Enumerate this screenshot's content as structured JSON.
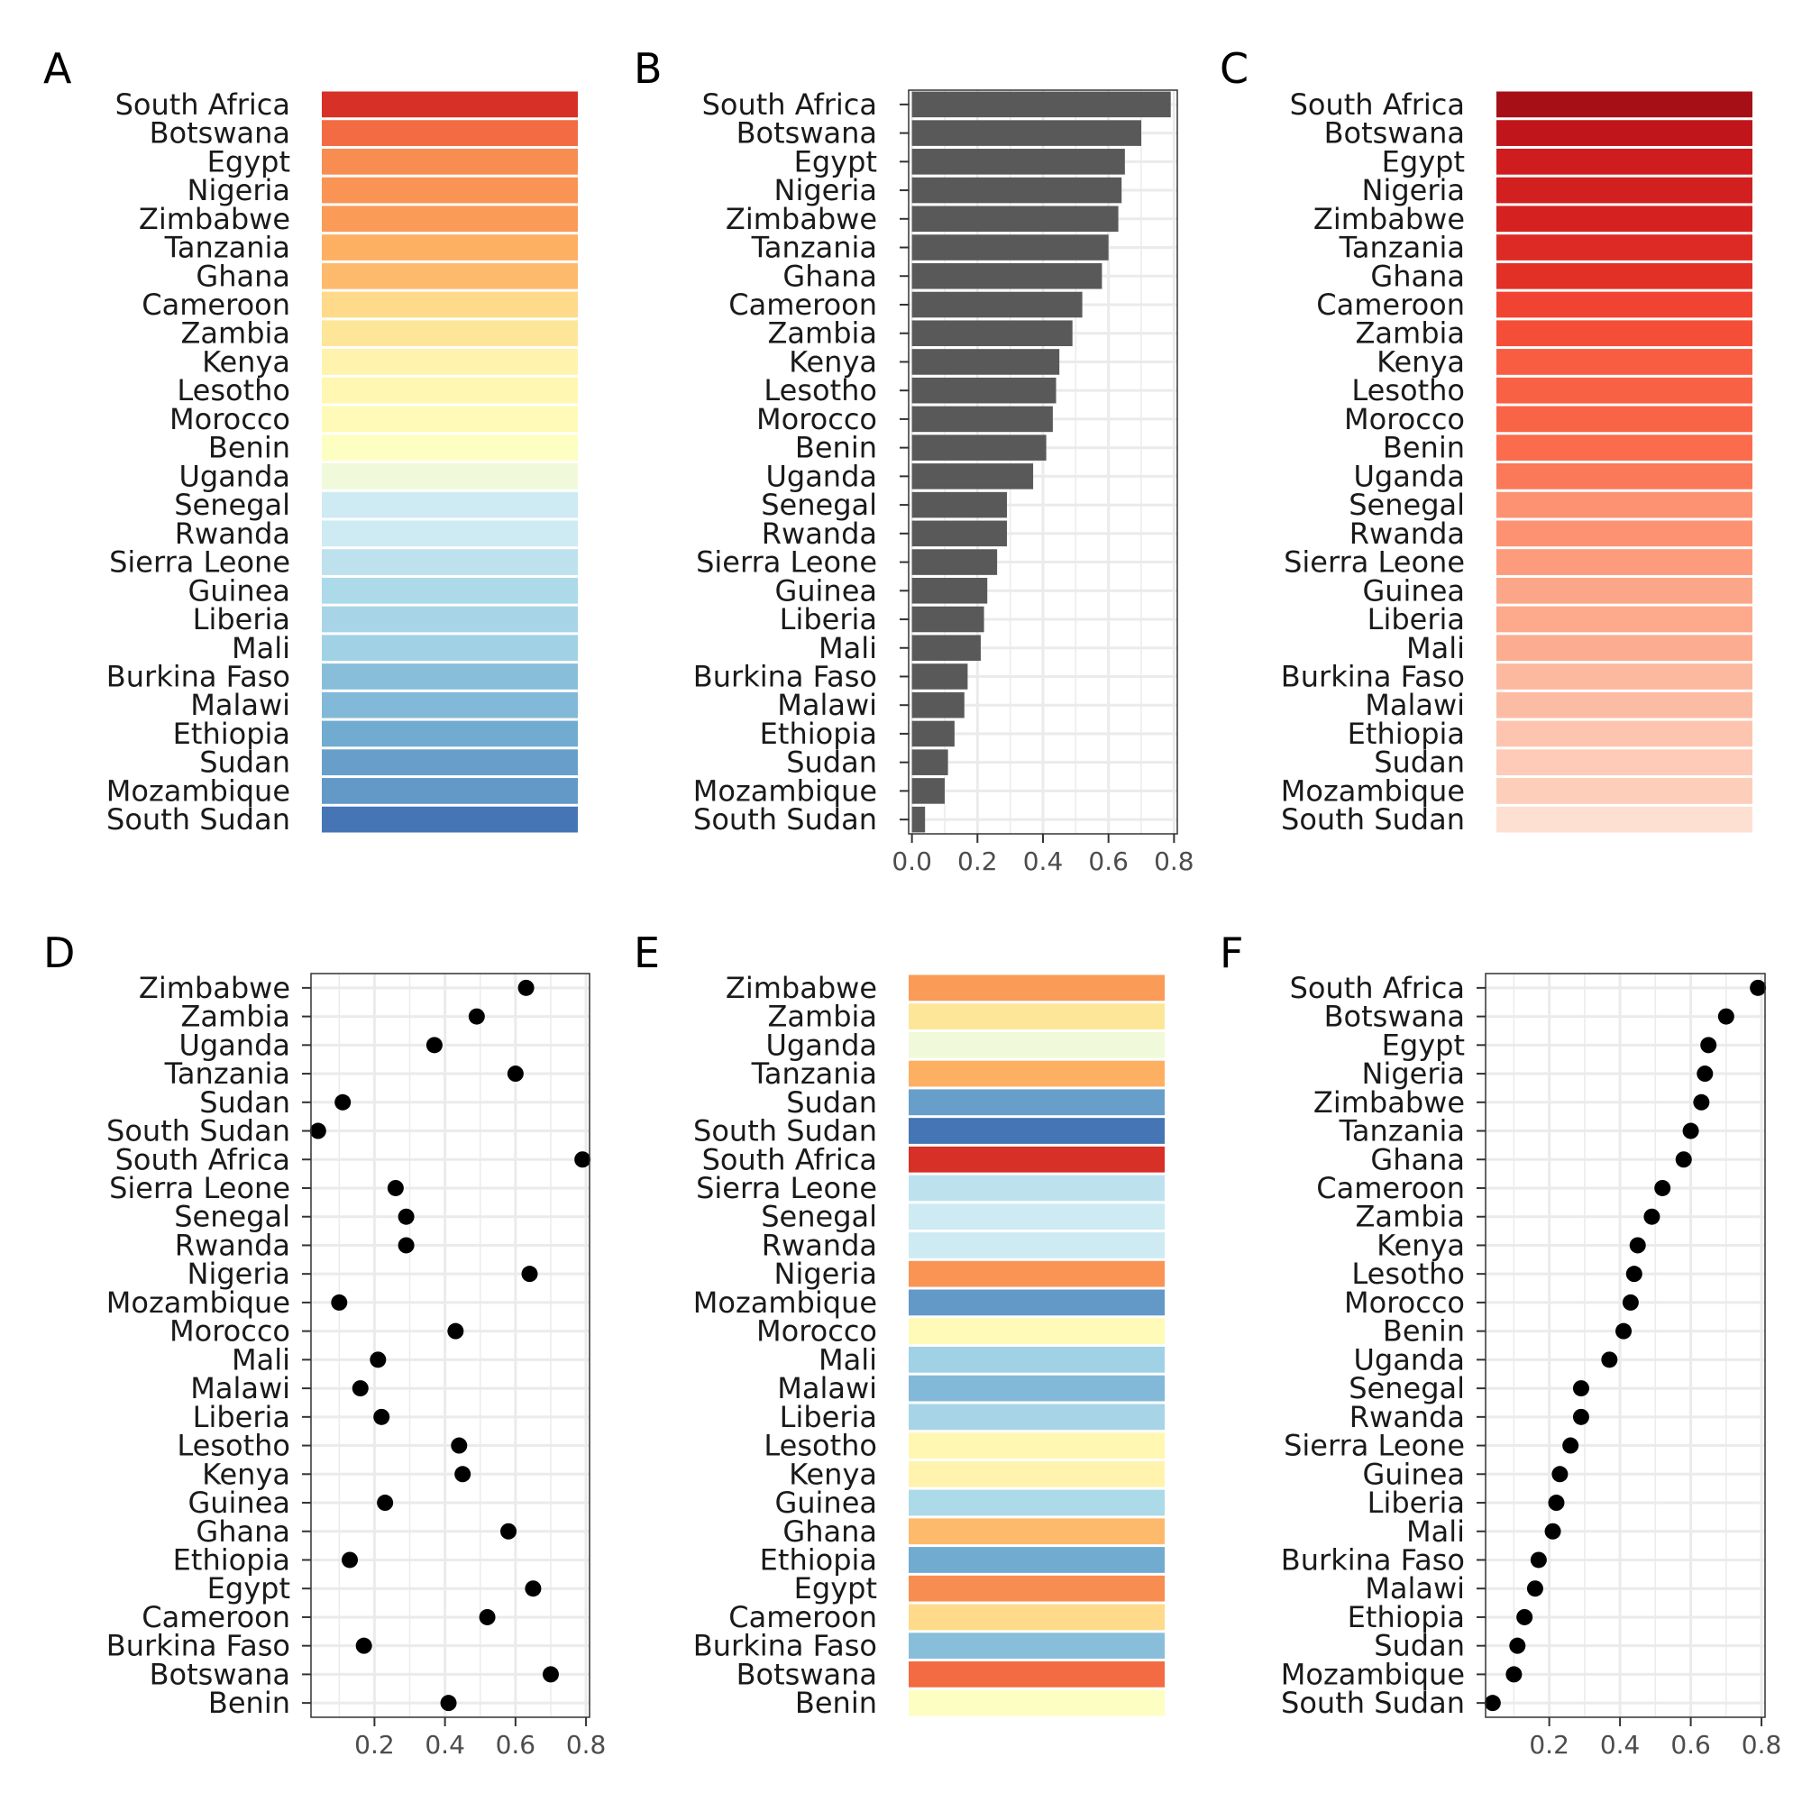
{
  "chart_data": [
    {
      "panel": "A",
      "type": "heatmap",
      "order": "by-value-desc",
      "palette": "RdYlBu",
      "axis": false,
      "color_range": [
        0.04,
        0.79
      ]
    },
    {
      "panel": "B",
      "type": "bar",
      "orientation": "horizontal",
      "order": "by-value-desc",
      "bar_color": "#595959",
      "axis": true,
      "frame": true,
      "xlim": [
        -0.01,
        0.81
      ],
      "xticks": [
        0.0,
        0.2,
        0.4,
        0.6,
        0.8
      ],
      "tick_labels": [
        "0.0",
        "0.2",
        "0.4",
        "0.6",
        "0.8"
      ]
    },
    {
      "panel": "C",
      "type": "heatmap",
      "order": "by-value-desc",
      "palette": "Reds",
      "axis": false,
      "color_range": [
        0.04,
        0.79
      ]
    },
    {
      "panel": "D",
      "type": "scatter",
      "order": "alphabetical-desc",
      "point_color": "#000000",
      "axis": true,
      "frame": true,
      "xlim": [
        0.02,
        0.81
      ],
      "xticks": [
        0.2,
        0.4,
        0.6,
        0.8
      ],
      "tick_labels": [
        "0.2",
        "0.4",
        "0.6",
        "0.8"
      ]
    },
    {
      "panel": "E",
      "type": "heatmap",
      "order": "alphabetical-desc",
      "palette": "RdYlBu",
      "axis": false,
      "color_range": [
        0.04,
        0.79
      ]
    },
    {
      "panel": "F",
      "type": "scatter",
      "order": "by-value-desc",
      "point_color": "#000000",
      "axis": true,
      "frame": true,
      "xlim": [
        0.02,
        0.81
      ],
      "xticks": [
        0.2,
        0.4,
        0.6,
        0.8
      ],
      "tick_labels": [
        "0.2",
        "0.4",
        "0.6",
        "0.8"
      ]
    }
  ],
  "countries": [
    {
      "name": "South Africa",
      "value": 0.79
    },
    {
      "name": "Botswana",
      "value": 0.7
    },
    {
      "name": "Egypt",
      "value": 0.65
    },
    {
      "name": "Nigeria",
      "value": 0.64
    },
    {
      "name": "Zimbabwe",
      "value": 0.63
    },
    {
      "name": "Tanzania",
      "value": 0.6
    },
    {
      "name": "Ghana",
      "value": 0.58
    },
    {
      "name": "Cameroon",
      "value": 0.52
    },
    {
      "name": "Zambia",
      "value": 0.49
    },
    {
      "name": "Kenya",
      "value": 0.45
    },
    {
      "name": "Lesotho",
      "value": 0.44
    },
    {
      "name": "Morocco",
      "value": 0.43
    },
    {
      "name": "Benin",
      "value": 0.41
    },
    {
      "name": "Uganda",
      "value": 0.37
    },
    {
      "name": "Senegal",
      "value": 0.29
    },
    {
      "name": "Rwanda",
      "value": 0.29
    },
    {
      "name": "Sierra Leone",
      "value": 0.26
    },
    {
      "name": "Guinea",
      "value": 0.23
    },
    {
      "name": "Liberia",
      "value": 0.22
    },
    {
      "name": "Mali",
      "value": 0.21
    },
    {
      "name": "Burkina Faso",
      "value": 0.17
    },
    {
      "name": "Malawi",
      "value": 0.16
    },
    {
      "name": "Ethiopia",
      "value": 0.13
    },
    {
      "name": "Sudan",
      "value": 0.11
    },
    {
      "name": "Mozambique",
      "value": 0.1
    },
    {
      "name": "South Sudan",
      "value": 0.04
    }
  ],
  "colors": {
    "bar": "#595959",
    "point": "#000000",
    "grid": "#ebebeb",
    "frame": "#333333",
    "tick_text": "#4d4d4d"
  }
}
